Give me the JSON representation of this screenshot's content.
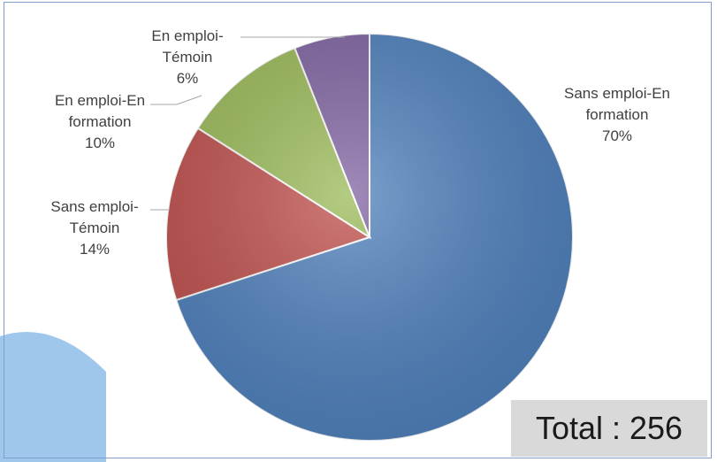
{
  "chart_data": {
    "type": "pie",
    "categories": [
      "Sans emploi-En formation",
      "Sans emploi-Témoin",
      "En emploi-En formation",
      "En emploi-Témoin"
    ],
    "values": [
      70,
      14,
      10,
      6
    ],
    "value_labels": [
      "70%",
      "14%",
      "10%",
      "6%"
    ],
    "colors": [
      "#4f81bd",
      "#c0504d",
      "#9bbb59",
      "#8064a2"
    ],
    "annotation": "Total : 256"
  }
}
